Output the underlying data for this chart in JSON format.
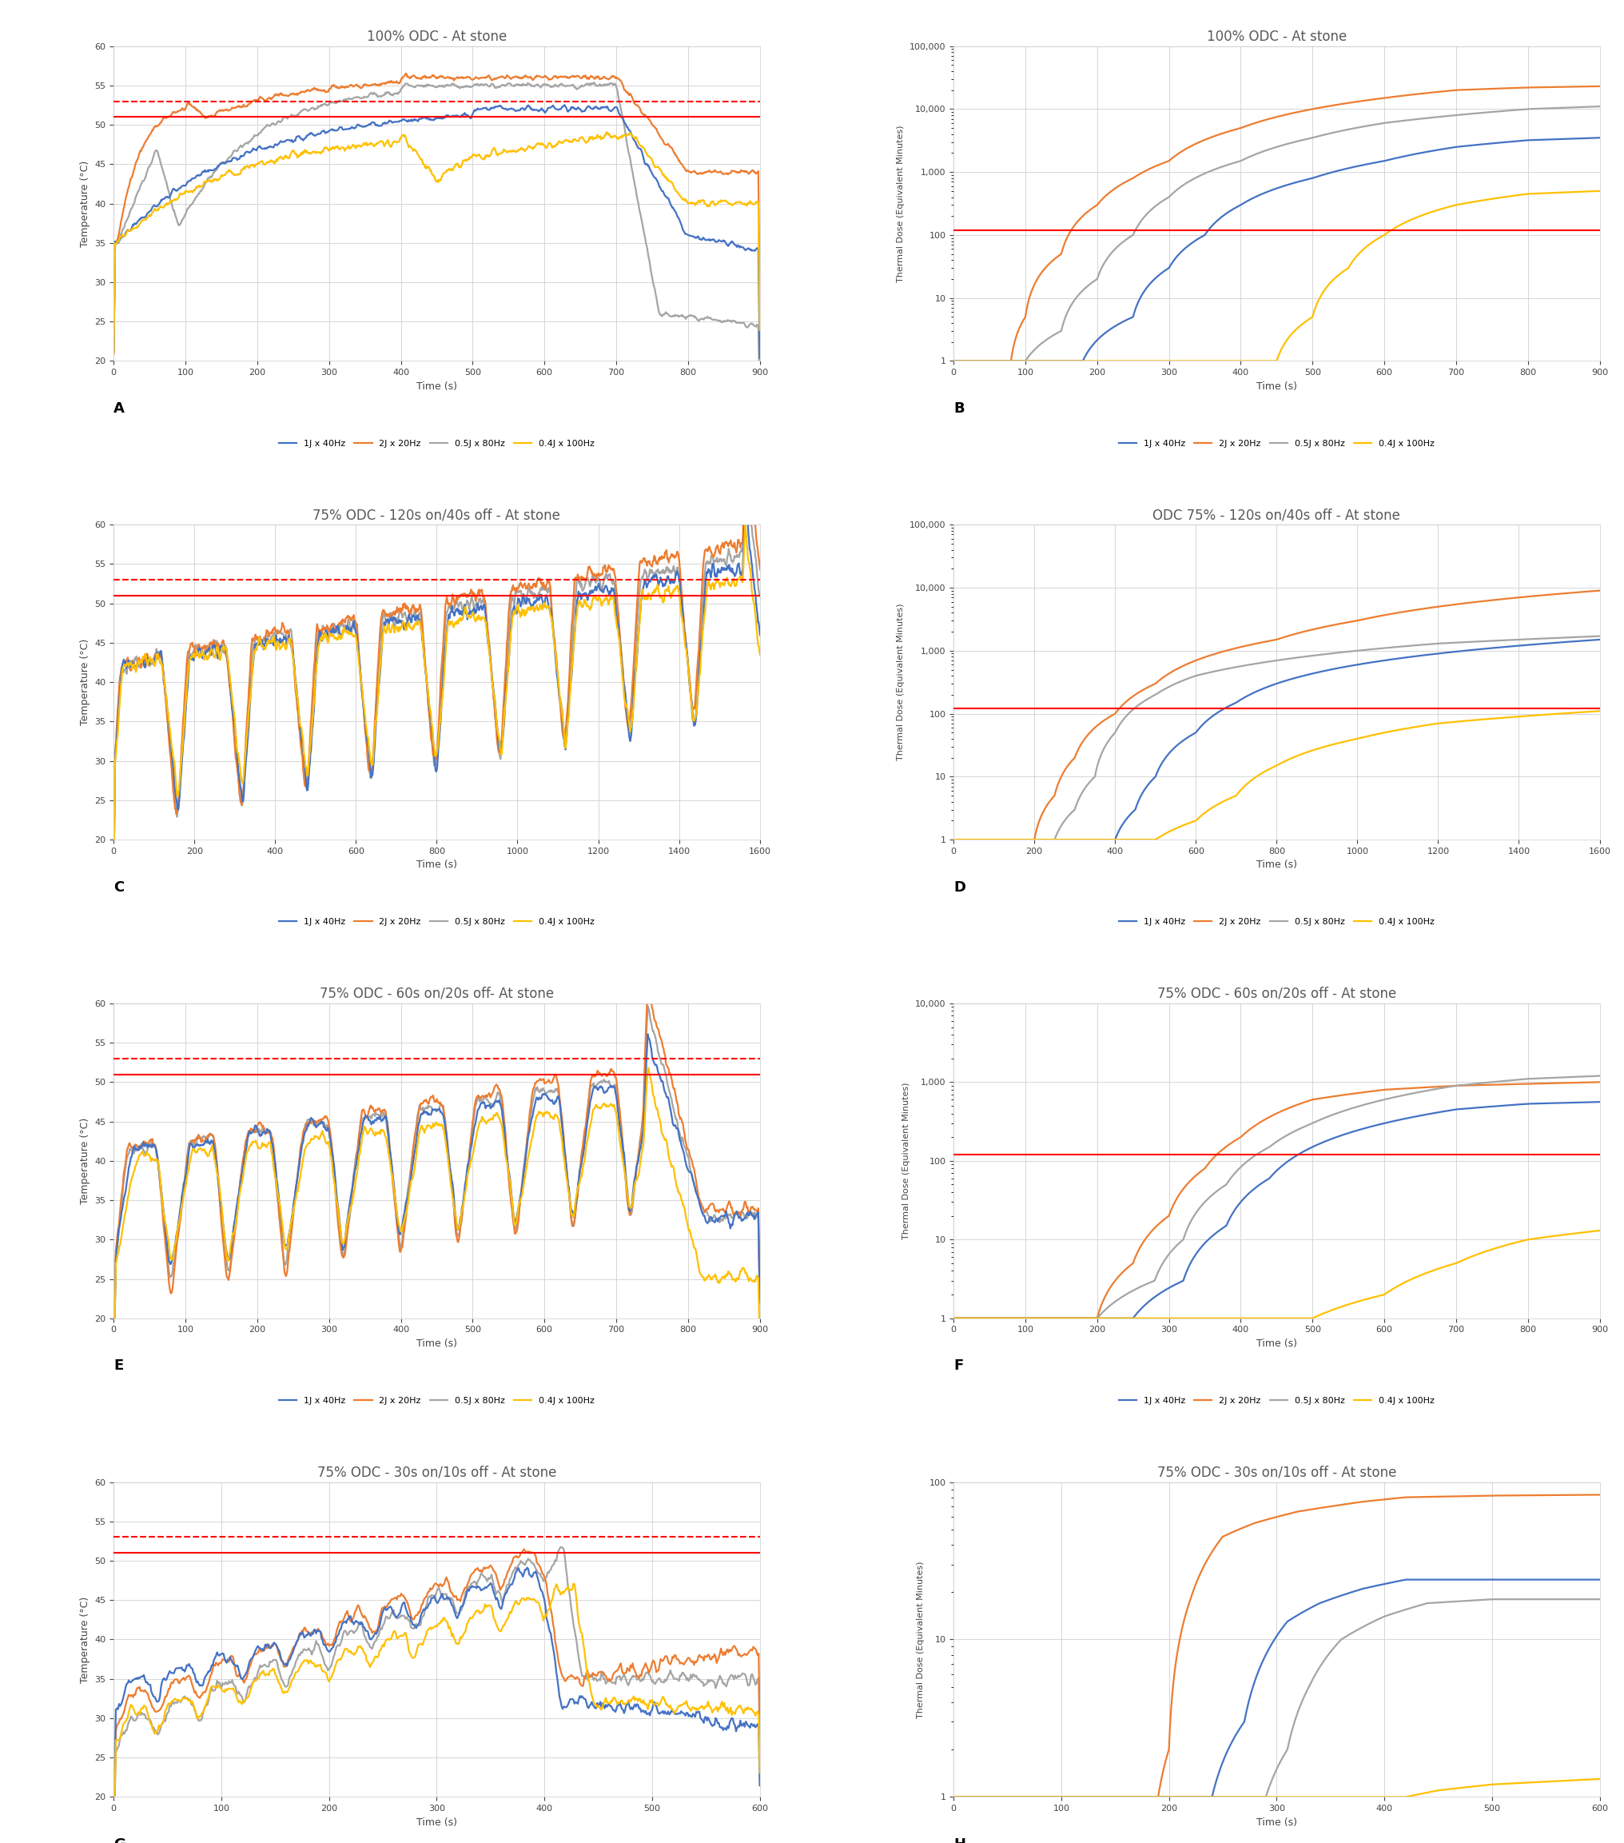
{
  "colors": {
    "blue": "#4472C4",
    "orange": "#ED7D31",
    "gray": "#A5A5A5",
    "yellow": "#FFC000"
  },
  "line_width": 1.6,
  "red_solid": "#FF0000",
  "red_dashed": "#FF0000",
  "panel_titles": [
    [
      "100% ODC - At stone",
      "100% ODC - At stone"
    ],
    [
      "75% ODC - 120s on/40s off - At stone",
      "ODC 75% - 120s on/40s off - At stone"
    ],
    [
      "75% ODC - 60s on/20s off- At stone",
      "75% ODC - 60s on/20s off - At stone"
    ],
    [
      "75% ODC - 30s on/10s off - At stone",
      "75% ODC - 30s on/10s off - At stone"
    ]
  ],
  "panel_labels": [
    "A",
    "B",
    "C",
    "D",
    "E",
    "F",
    "G",
    "H"
  ],
  "legend_entries": [
    {
      "label": "1J x 40Hz",
      "color": "#4472C4"
    },
    {
      "label": "2J x 20Hz",
      "color": "#ED7D31"
    },
    {
      "label": "0.5J x 80Hz",
      "color": "#A5A5A5"
    },
    {
      "label": "0.4J x 100Hz",
      "color": "#FFC000"
    }
  ],
  "temp_ylim": [
    20,
    60
  ],
  "temp_yticks": [
    20,
    25,
    30,
    35,
    40,
    45,
    50,
    55,
    60
  ],
  "temp_ylabel": "Temperature (°C)",
  "dose_ylabel": "Thermal Dose (Equivalent Minutes)",
  "xlabel": "Time (s)",
  "red_solid_temp": 51.0,
  "red_dashed_temp": 53.0,
  "red_solid_dose": 120.0,
  "background": "#FFFFFF",
  "grid_color": "#D0D0D0",
  "title_color": "#595959"
}
